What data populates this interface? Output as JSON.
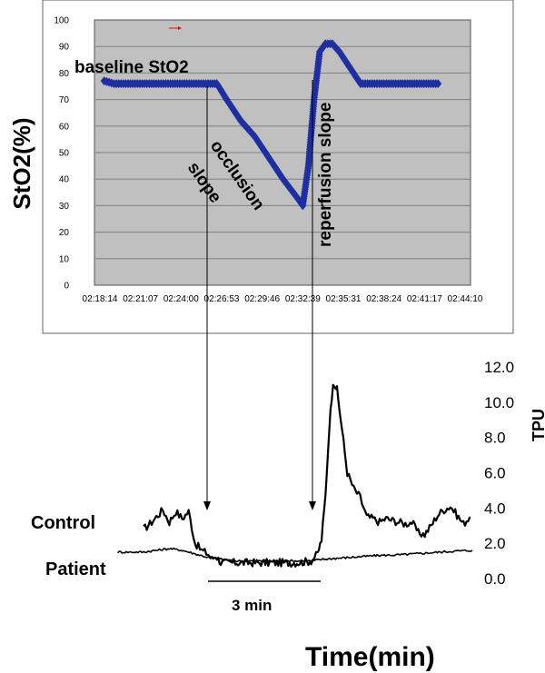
{
  "chart_data": [
    {
      "type": "line",
      "panel": "top",
      "ylabel": "StO2(%)",
      "xlabel": "",
      "ylim": [
        0,
        100
      ],
      "yticks": [
        0,
        10,
        20,
        30,
        40,
        50,
        60,
        70,
        80,
        90,
        100
      ],
      "xtick_labels": [
        "02:18:14",
        "02:21:07",
        "02:24:00",
        "02:26:53",
        "02:29:46",
        "02:32:39",
        "02:35:31",
        "02:38:24",
        "02:41:17",
        "02:44:10"
      ],
      "grid": true,
      "plot_background": "#c0c0c0",
      "series_color": "#1f2f9f",
      "series": [
        {
          "marker": "diamond",
          "x_minutes_from_start": [
            0.3,
            1,
            2,
            3,
            4,
            5,
            6,
            7,
            8,
            8.3,
            9,
            10,
            11,
            12,
            13,
            14,
            14.4,
            14.8,
            15.2,
            15.6,
            16,
            16.5,
            17,
            18,
            18.5,
            19,
            20,
            21,
            22,
            23,
            24
          ],
          "y": [
            77,
            76,
            76,
            76,
            76,
            76,
            76,
            76,
            76,
            76,
            70,
            62,
            56,
            48,
            40,
            33,
            30,
            45,
            70,
            88,
            91,
            91,
            88,
            80,
            76,
            76,
            76,
            76,
            76,
            76,
            76
          ]
        }
      ],
      "annotations": [
        "baseline StO2",
        "occlusion",
        "slope",
        "reperfusion slope"
      ]
    },
    {
      "type": "line",
      "panel": "bottom",
      "ylabel": "TPU",
      "xlabel": "Time(min)",
      "ylim": [
        0,
        12
      ],
      "yticks": [
        "0.0",
        "2.0",
        "4.0",
        "6.0",
        "8.0",
        "10.0",
        "12.0"
      ],
      "scale_bar_label": "3 min",
      "series": [
        {
          "name": "Control",
          "x_min": [
            0,
            0.5,
            1,
            1.5,
            2,
            2.5,
            3,
            3.5,
            4,
            4.5,
            5,
            5.3,
            5.6,
            6,
            7,
            8,
            9,
            10,
            11,
            12,
            13,
            13.5,
            13.8,
            14.1,
            14.4,
            14.7,
            15,
            15.4,
            15.8,
            16.3,
            16.8,
            17.3,
            17.8,
            18.3,
            18.8,
            19.3,
            19.8,
            20.3,
            20.8,
            21.3,
            21.8,
            22.3,
            22.8,
            23.3,
            23.8,
            24.3,
            24.8,
            25.3
          ],
          "y": [
            2.8,
            3.1,
            3.5,
            3.9,
            3.2,
            3.8,
            3.4,
            3.8,
            2.0,
            1.6,
            1.4,
            1.1,
            1.3,
            0.9,
            0.9,
            0.9,
            0.9,
            0.9,
            0.9,
            0.9,
            1.0,
            1.4,
            2.2,
            4.6,
            8.6,
            11.2,
            10.7,
            8.4,
            6.0,
            5.1,
            4.6,
            3.5,
            3.4,
            3.2,
            3.4,
            3.3,
            3.2,
            3.1,
            3.2,
            2.6,
            2.5,
            3.0,
            3.6,
            3.9,
            4.1,
            3.6,
            3.1,
            3.5
          ]
        },
        {
          "name": "Patient",
          "x_min": [
            -2,
            -1,
            0,
            1,
            2,
            3,
            4,
            5,
            6,
            7,
            8,
            9,
            10,
            11,
            12,
            13,
            14,
            16,
            18,
            20,
            22,
            24,
            25.5
          ],
          "y": [
            1.5,
            1.5,
            1.5,
            1.6,
            1.7,
            1.6,
            1.4,
            1.2,
            1.1,
            1.0,
            1.0,
            1.0,
            1.0,
            1.0,
            1.0,
            1.0,
            1.1,
            1.2,
            1.3,
            1.35,
            1.45,
            1.55,
            1.6
          ]
        }
      ]
    }
  ]
}
